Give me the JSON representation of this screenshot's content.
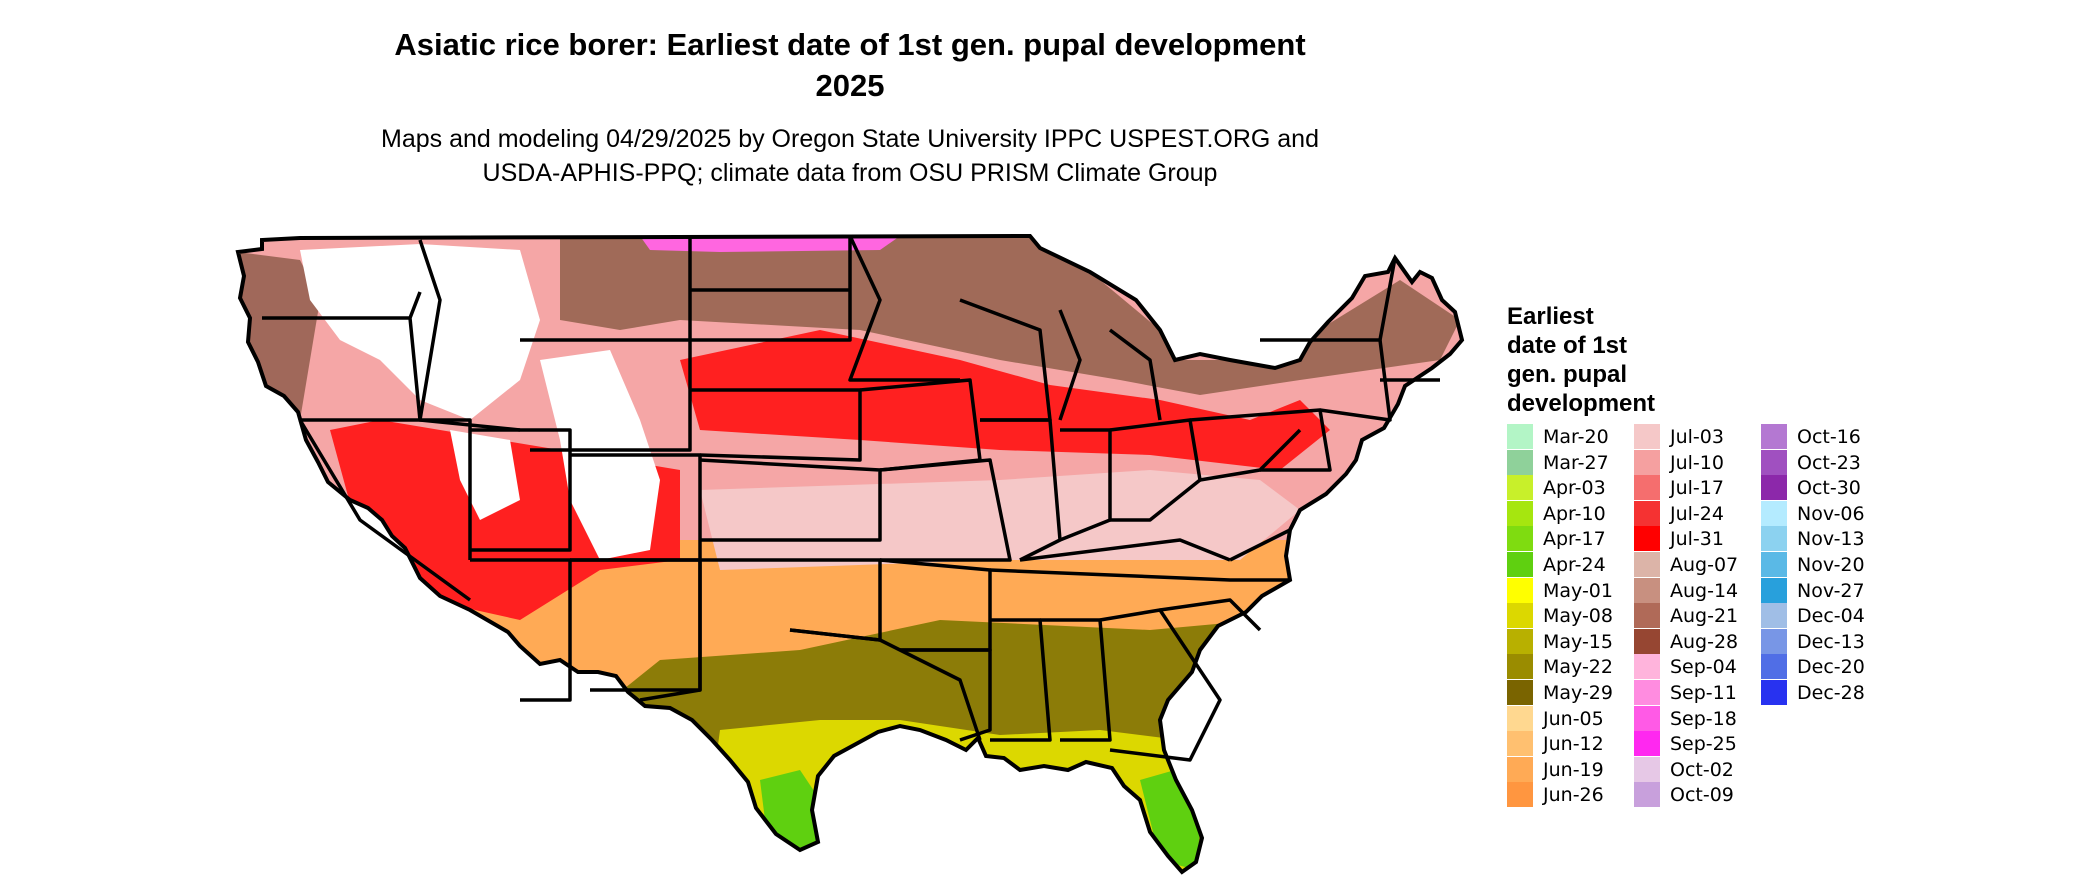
{
  "title_line1": "Asiatic rice borer: Earliest date of 1st gen. pupal development",
  "title_line2": "2025",
  "subtitle_line1": "Maps and modeling 04/29/2025 by Oregon State University IPPC USPEST.ORG and",
  "subtitle_line2": "USDA-APHIS-PPQ; climate data from OSU PRISM Climate Group",
  "legend": {
    "title_lines": [
      "Earliest",
      "date of 1st",
      "gen. pupal",
      "development"
    ],
    "columns": [
      [
        {
          "label": "Mar-20",
          "color": "#b3f5c6"
        },
        {
          "label": "Mar-27",
          "color": "#8fd19a"
        },
        {
          "label": "Apr-03",
          "color": "#c8f02a"
        },
        {
          "label": "Apr-10",
          "color": "#a6e60f"
        },
        {
          "label": "Apr-17",
          "color": "#7fdc10"
        },
        {
          "label": "Apr-24",
          "color": "#5fd010"
        },
        {
          "label": "May-01",
          "color": "#ffff00"
        },
        {
          "label": "May-08",
          "color": "#dcd800"
        },
        {
          "label": "May-15",
          "color": "#b8b000"
        },
        {
          "label": "May-22",
          "color": "#9a8c00"
        },
        {
          "label": "May-29",
          "color": "#7a6400"
        },
        {
          "label": "Jun-05",
          "color": "#ffd890"
        },
        {
          "label": "Jun-12",
          "color": "#ffc070"
        },
        {
          "label": "Jun-19",
          "color": "#ffaa55"
        },
        {
          "label": "Jun-26",
          "color": "#ff9640"
        }
      ],
      [
        {
          "label": "Jul-03",
          "color": "#f5c8c8"
        },
        {
          "label": "Jul-10",
          "color": "#f5a0a0"
        },
        {
          "label": "Jul-17",
          "color": "#f56e6e"
        },
        {
          "label": "Jul-24",
          "color": "#f53232"
        },
        {
          "label": "Jul-31",
          "color": "#ff0000"
        },
        {
          "label": "Aug-07",
          "color": "#dcb4a8"
        },
        {
          "label": "Aug-14",
          "color": "#c89080"
        },
        {
          "label": "Aug-21",
          "color": "#b06a58"
        },
        {
          "label": "Aug-28",
          "color": "#964632"
        },
        {
          "label": "Sep-04",
          "color": "#ffb4dc"
        },
        {
          "label": "Sep-11",
          "color": "#ff8ce0"
        },
        {
          "label": "Sep-18",
          "color": "#ff5ae6"
        },
        {
          "label": "Sep-25",
          "color": "#ff28f0"
        },
        {
          "label": "Oct-02",
          "color": "#e6c8e6"
        },
        {
          "label": "Oct-09",
          "color": "#c8a0dc"
        }
      ],
      [
        {
          "label": "Oct-16",
          "color": "#b478d2"
        },
        {
          "label": "Oct-23",
          "color": "#a050c0"
        },
        {
          "label": "Oct-30",
          "color": "#8c28aa"
        },
        {
          "label": "Nov-06",
          "color": "#b4ebff"
        },
        {
          "label": "Nov-13",
          "color": "#8cd2f0"
        },
        {
          "label": "Nov-20",
          "color": "#5ab9e6"
        },
        {
          "label": "Nov-27",
          "color": "#28a0dc"
        },
        {
          "label": "Dec-04",
          "color": "#a0bee6"
        },
        {
          "label": "Dec-13",
          "color": "#7896e6"
        },
        {
          "label": "Dec-20",
          "color": "#506ee6"
        },
        {
          "label": "Dec-28",
          "color": "#2832f0"
        }
      ]
    ]
  },
  "map_region_colors": {
    "pnw_lowland": "#a0685a",
    "mountain_white": "#ffffff",
    "north_brown": "#a06a58",
    "north_pink_fringe": "#ff66e0",
    "plains_red": "#ff2020",
    "central_pink": "#f5a6a6",
    "light_pink": "#f5c8c8",
    "south_orange": "#ffaa55",
    "gulf_olive": "#8c7c08",
    "coast_yellow": "#dcd800",
    "south_texas_green": "#5fd010",
    "california_orange": "#ffb060",
    "sonoran_yellow": "#c8c000"
  }
}
